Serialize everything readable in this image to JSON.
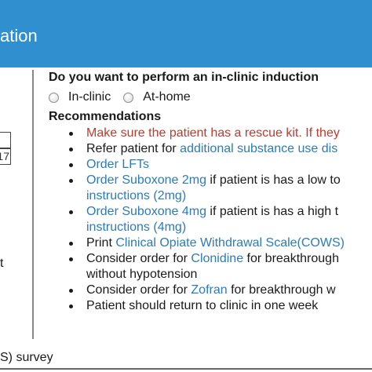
{
  "header": {
    "title": "ation",
    "bg_color": "#2f8fcf"
  },
  "left_panel": {
    "cell_value": "17",
    "fragment": "t"
  },
  "induction": {
    "question": "Do you want to perform an in-clinic induction",
    "options": [
      "In-clinic",
      "At-home"
    ]
  },
  "recommendations": {
    "title": "Recommendations",
    "items": [
      {
        "parts": [
          {
            "text": "Make sure the patient has a rescue kit. If they",
            "style": "red"
          }
        ]
      },
      {
        "parts": [
          {
            "text": "Refer patient for ",
            "style": "plain"
          },
          {
            "text": "additional substance use dis",
            "style": "link"
          }
        ]
      },
      {
        "parts": [
          {
            "text": "Order LFTs",
            "style": "link"
          }
        ]
      },
      {
        "parts": [
          {
            "text": "Order Suboxone 2mg",
            "style": "link"
          },
          {
            "text": " if patient is has a low to",
            "style": "plain"
          }
        ]
      },
      {
        "parts": [
          {
            "text": "instructions (2mg)",
            "style": "link"
          }
        ],
        "continuation": true
      },
      {
        "parts": [
          {
            "text": "Order Suboxone 4mg",
            "style": "link"
          },
          {
            "text": " if patient is has a high t",
            "style": "plain"
          }
        ]
      },
      {
        "parts": [
          {
            "text": "instructions (4mg)",
            "style": "link"
          }
        ],
        "continuation": true
      },
      {
        "parts": [
          {
            "text": "Print ",
            "style": "plain"
          },
          {
            "text": "Clinical Opiate Withdrawal Scale(COWS)",
            "style": "link"
          }
        ]
      },
      {
        "parts": [
          {
            "text": "Consider order for ",
            "style": "plain"
          },
          {
            "text": "Clonidine",
            "style": "link"
          },
          {
            "text": " for breakthrough",
            "style": "plain"
          }
        ]
      },
      {
        "parts": [
          {
            "text": "without hypotension",
            "style": "plain"
          }
        ],
        "continuation": true
      },
      {
        "parts": [
          {
            "text": "Consider order for ",
            "style": "plain"
          },
          {
            "text": "Zofran",
            "style": "link"
          },
          {
            "text": " for breakthrough w",
            "style": "plain"
          }
        ]
      },
      {
        "parts": [
          {
            "text": "Patient should return to clinic in one week",
            "style": "plain"
          }
        ]
      }
    ]
  },
  "footer": {
    "survey_text": "S) survey"
  },
  "colors": {
    "link": "#2a7bbf",
    "alert": "#c0392b",
    "header": "#2f8fcf"
  }
}
